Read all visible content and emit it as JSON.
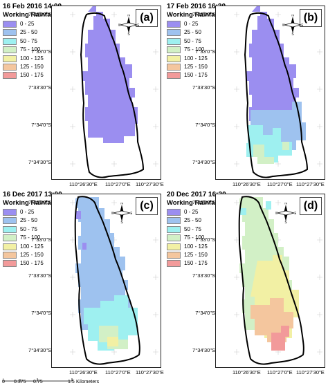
{
  "legend_title": "Working Rainfall (mm)",
  "legend_items": [
    {
      "label": "0 - 25",
      "color": "#9b8ef0"
    },
    {
      "label": "25 - 50",
      "color": "#9ec2ef"
    },
    {
      "label": "50 - 75",
      "color": "#9ef0f0"
    },
    {
      "label": "75 - 100",
      "color": "#d2f0c6"
    },
    {
      "label": "100 - 125",
      "color": "#f2f0a4"
    },
    {
      "label": "125 - 150",
      "color": "#f4c69e"
    },
    {
      "label": "150 - 175",
      "color": "#f29a9a"
    }
  ],
  "lat_labels": [
    "7°32'30\"S",
    "7°33'0\"S",
    "7°33'30\"S",
    "7°34'0\"S",
    "7°34'30\"S"
  ],
  "lon_labels": [
    "110°26'30\"E",
    "110°27'0\"E",
    "110°27'30\"E"
  ],
  "north_arrow": {
    "n": "N",
    "s": "S",
    "e": "E",
    "w": "W"
  },
  "panels": [
    {
      "letter": "(a)",
      "date": "16 Feb 2016 14:00"
    },
    {
      "letter": "(b)",
      "date": "17 Feb 2016 16:30"
    },
    {
      "letter": "(c)",
      "date": "16 Dec 2017 13:00"
    },
    {
      "letter": "(d)",
      "date": "20 Dec 2017 16:30"
    }
  ],
  "scale": {
    "ticks": [
      "0",
      "0.375",
      "0.75",
      "1.5"
    ],
    "unit": "Kilometers"
  }
}
